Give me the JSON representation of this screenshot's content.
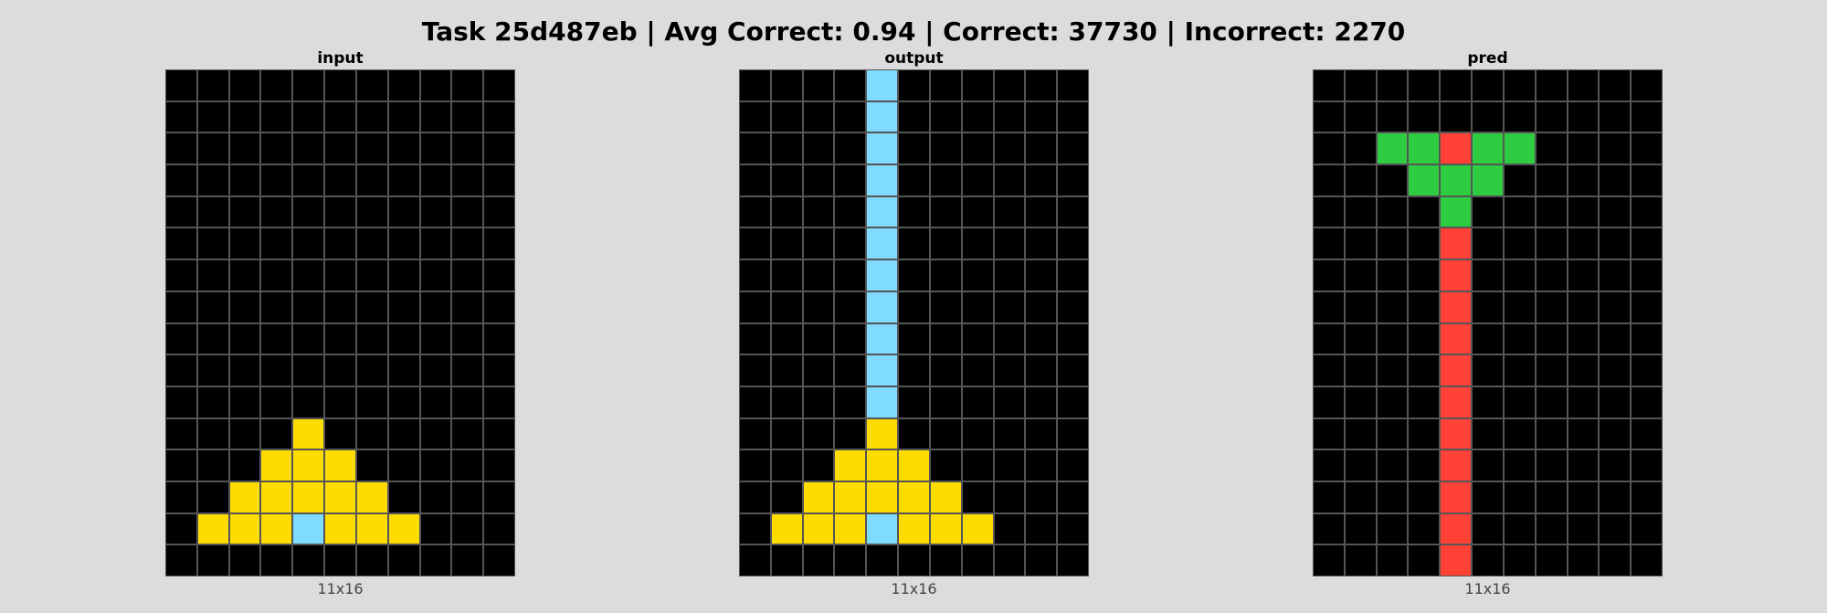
{
  "title": "Task 25d487eb | Avg Correct: 0.94 | Correct: 37730 | Incorrect: 2270",
  "palette": {
    "0": "#000000",
    "2": "#ff4136",
    "3": "#2ecc40",
    "4": "#ffdc00",
    "8": "#7fdbff"
  },
  "panels": [
    {
      "label": "input",
      "dims": "11x16",
      "grid": [
        [
          0,
          0,
          0,
          0,
          0,
          0,
          0,
          0,
          0,
          0,
          0
        ],
        [
          0,
          0,
          0,
          0,
          0,
          0,
          0,
          0,
          0,
          0,
          0
        ],
        [
          0,
          0,
          0,
          0,
          0,
          0,
          0,
          0,
          0,
          0,
          0
        ],
        [
          0,
          0,
          0,
          0,
          0,
          0,
          0,
          0,
          0,
          0,
          0
        ],
        [
          0,
          0,
          0,
          0,
          0,
          0,
          0,
          0,
          0,
          0,
          0
        ],
        [
          0,
          0,
          0,
          0,
          0,
          0,
          0,
          0,
          0,
          0,
          0
        ],
        [
          0,
          0,
          0,
          0,
          0,
          0,
          0,
          0,
          0,
          0,
          0
        ],
        [
          0,
          0,
          0,
          0,
          0,
          0,
          0,
          0,
          0,
          0,
          0
        ],
        [
          0,
          0,
          0,
          0,
          0,
          0,
          0,
          0,
          0,
          0,
          0
        ],
        [
          0,
          0,
          0,
          0,
          0,
          0,
          0,
          0,
          0,
          0,
          0
        ],
        [
          0,
          0,
          0,
          0,
          0,
          0,
          0,
          0,
          0,
          0,
          0
        ],
        [
          0,
          0,
          0,
          0,
          4,
          0,
          0,
          0,
          0,
          0,
          0
        ],
        [
          0,
          0,
          0,
          4,
          4,
          4,
          0,
          0,
          0,
          0,
          0
        ],
        [
          0,
          0,
          4,
          4,
          4,
          4,
          4,
          0,
          0,
          0,
          0
        ],
        [
          0,
          4,
          4,
          4,
          8,
          4,
          4,
          4,
          0,
          0,
          0
        ],
        [
          0,
          0,
          0,
          0,
          0,
          0,
          0,
          0,
          0,
          0,
          0
        ]
      ]
    },
    {
      "label": "output",
      "dims": "11x16",
      "grid": [
        [
          0,
          0,
          0,
          0,
          8,
          0,
          0,
          0,
          0,
          0,
          0
        ],
        [
          0,
          0,
          0,
          0,
          8,
          0,
          0,
          0,
          0,
          0,
          0
        ],
        [
          0,
          0,
          0,
          0,
          8,
          0,
          0,
          0,
          0,
          0,
          0
        ],
        [
          0,
          0,
          0,
          0,
          8,
          0,
          0,
          0,
          0,
          0,
          0
        ],
        [
          0,
          0,
          0,
          0,
          8,
          0,
          0,
          0,
          0,
          0,
          0
        ],
        [
          0,
          0,
          0,
          0,
          8,
          0,
          0,
          0,
          0,
          0,
          0
        ],
        [
          0,
          0,
          0,
          0,
          8,
          0,
          0,
          0,
          0,
          0,
          0
        ],
        [
          0,
          0,
          0,
          0,
          8,
          0,
          0,
          0,
          0,
          0,
          0
        ],
        [
          0,
          0,
          0,
          0,
          8,
          0,
          0,
          0,
          0,
          0,
          0
        ],
        [
          0,
          0,
          0,
          0,
          8,
          0,
          0,
          0,
          0,
          0,
          0
        ],
        [
          0,
          0,
          0,
          0,
          8,
          0,
          0,
          0,
          0,
          0,
          0
        ],
        [
          0,
          0,
          0,
          0,
          4,
          0,
          0,
          0,
          0,
          0,
          0
        ],
        [
          0,
          0,
          0,
          4,
          4,
          4,
          0,
          0,
          0,
          0,
          0
        ],
        [
          0,
          0,
          4,
          4,
          4,
          4,
          4,
          0,
          0,
          0,
          0
        ],
        [
          0,
          4,
          4,
          4,
          8,
          4,
          4,
          4,
          0,
          0,
          0
        ],
        [
          0,
          0,
          0,
          0,
          0,
          0,
          0,
          0,
          0,
          0,
          0
        ]
      ]
    },
    {
      "label": "pred",
      "dims": "11x16",
      "grid": [
        [
          0,
          0,
          0,
          0,
          0,
          0,
          0,
          0,
          0,
          0,
          0
        ],
        [
          0,
          0,
          0,
          0,
          0,
          0,
          0,
          0,
          0,
          0,
          0
        ],
        [
          0,
          0,
          3,
          3,
          2,
          3,
          3,
          0,
          0,
          0,
          0
        ],
        [
          0,
          0,
          0,
          3,
          3,
          3,
          0,
          0,
          0,
          0,
          0
        ],
        [
          0,
          0,
          0,
          0,
          3,
          0,
          0,
          0,
          0,
          0,
          0
        ],
        [
          0,
          0,
          0,
          0,
          2,
          0,
          0,
          0,
          0,
          0,
          0
        ],
        [
          0,
          0,
          0,
          0,
          2,
          0,
          0,
          0,
          0,
          0,
          0
        ],
        [
          0,
          0,
          0,
          0,
          2,
          0,
          0,
          0,
          0,
          0,
          0
        ],
        [
          0,
          0,
          0,
          0,
          2,
          0,
          0,
          0,
          0,
          0,
          0
        ],
        [
          0,
          0,
          0,
          0,
          2,
          0,
          0,
          0,
          0,
          0,
          0
        ],
        [
          0,
          0,
          0,
          0,
          2,
          0,
          0,
          0,
          0,
          0,
          0
        ],
        [
          0,
          0,
          0,
          0,
          2,
          0,
          0,
          0,
          0,
          0,
          0
        ],
        [
          0,
          0,
          0,
          0,
          2,
          0,
          0,
          0,
          0,
          0,
          0
        ],
        [
          0,
          0,
          0,
          0,
          2,
          0,
          0,
          0,
          0,
          0,
          0
        ],
        [
          0,
          0,
          0,
          0,
          2,
          0,
          0,
          0,
          0,
          0,
          0
        ],
        [
          0,
          0,
          0,
          0,
          2,
          0,
          0,
          0,
          0,
          0,
          0
        ]
      ]
    }
  ]
}
